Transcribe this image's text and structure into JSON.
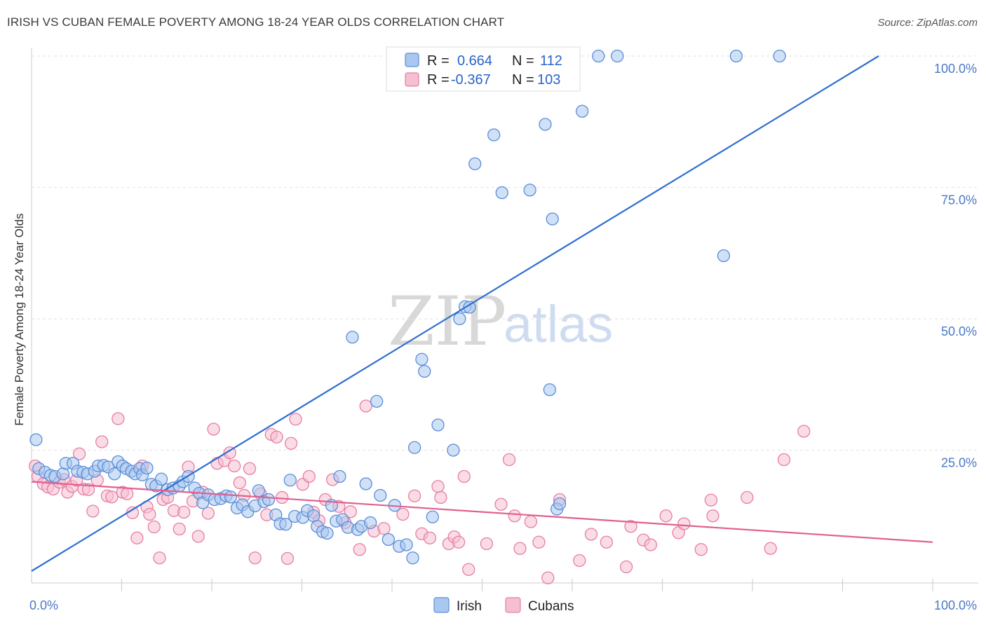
{
  "title": "IRISH VS CUBAN FEMALE POVERTY AMONG 18-24 YEAR OLDS CORRELATION CHART",
  "source": "Source: ZipAtlas.com",
  "watermark": {
    "zip": "ZIP",
    "atlas": "atlas"
  },
  "chart_data": {
    "type": "scatter",
    "title": "IRISH VS CUBAN FEMALE POVERTY AMONG 18-24 YEAR OLDS CORRELATION CHART",
    "xlabel": "",
    "ylabel": "Female Poverty Among 18-24 Year Olds",
    "xlim": [
      0,
      100
    ],
    "ylim": [
      0,
      100
    ],
    "x_tick_labels": [
      "0.0%",
      "100.0%"
    ],
    "y_ticks": [
      25,
      50,
      75,
      100
    ],
    "y_tick_labels": [
      "25.0%",
      "50.0%",
      "75.0%",
      "100.0%"
    ],
    "grid": true,
    "legend_placement": "top-center",
    "colors": {
      "irish": "#5b8fd8",
      "irish_fill": "#a9c7ef",
      "irish_line": "#2f6fcf",
      "cubans": "#e77fa3",
      "cubans_fill": "#f5bfd2",
      "cubans_line": "#e0608f"
    },
    "legend": {
      "irish": {
        "r_label": "R =",
        "r_value": "0.664",
        "n_label": "N =",
        "n_value": "112"
      },
      "cubans": {
        "r_label": "R =",
        "r_value": "-0.367",
        "n_label": "N =",
        "n_value": "103"
      }
    },
    "series": [
      {
        "name": "Irish",
        "trend": {
          "x": [
            0,
            94
          ],
          "y": [
            2,
            100
          ]
        },
        "points": [
          [
            0.5,
            27
          ],
          [
            0.8,
            21.5
          ],
          [
            1.5,
            20.8
          ],
          [
            2.1,
            20.2
          ],
          [
            2.6,
            20
          ],
          [
            3.5,
            20.5
          ],
          [
            3.8,
            22.5
          ],
          [
            4.6,
            22.5
          ],
          [
            5.1,
            21
          ],
          [
            5.7,
            20.8
          ],
          [
            6.2,
            20.5
          ],
          [
            7,
            21
          ],
          [
            7.4,
            22
          ],
          [
            8,
            22.1
          ],
          [
            8.5,
            21.8
          ],
          [
            9.2,
            20.5
          ],
          [
            9.6,
            22.8
          ],
          [
            10.1,
            22
          ],
          [
            10.5,
            21.5
          ],
          [
            11.1,
            21
          ],
          [
            11.5,
            20.5
          ],
          [
            12,
            21.5
          ],
          [
            12.3,
            20.3
          ],
          [
            12.8,
            21.6
          ],
          [
            13.3,
            18.5
          ],
          [
            13.8,
            18.2
          ],
          [
            14.4,
            19.5
          ],
          [
            15.1,
            17.5
          ],
          [
            15.7,
            17.8
          ],
          [
            16.4,
            18.2
          ],
          [
            16.8,
            19
          ],
          [
            17.4,
            20
          ],
          [
            18.1,
            17.8
          ],
          [
            18.6,
            16.8
          ],
          [
            19,
            15
          ],
          [
            19.6,
            16.5
          ],
          [
            20.3,
            15.6
          ],
          [
            21,
            15.8
          ],
          [
            21.6,
            16.3
          ],
          [
            22.1,
            16.1
          ],
          [
            22.8,
            14
          ],
          [
            23.4,
            14.6
          ],
          [
            24,
            13.3
          ],
          [
            24.8,
            14.4
          ],
          [
            25.2,
            17.3
          ],
          [
            25.8,
            15.2
          ],
          [
            26.3,
            15.6
          ],
          [
            27.1,
            12.7
          ],
          [
            27.6,
            11
          ],
          [
            28.2,
            10.9
          ],
          [
            28.7,
            19.3
          ],
          [
            29.2,
            12.4
          ],
          [
            30.1,
            12.2
          ],
          [
            30.6,
            13.5
          ],
          [
            31.3,
            12.5
          ],
          [
            31.7,
            10.5
          ],
          [
            32.3,
            9.5
          ],
          [
            32.8,
            9.2
          ],
          [
            33.3,
            14.5
          ],
          [
            33.8,
            11.5
          ],
          [
            34.2,
            20
          ],
          [
            34.5,
            11.8
          ],
          [
            35.1,
            10.3
          ],
          [
            35.6,
            46.5
          ],
          [
            36.2,
            9.9
          ],
          [
            36.6,
            10.5
          ],
          [
            37.1,
            18.6
          ],
          [
            37.6,
            11.2
          ],
          [
            38.3,
            34.3
          ],
          [
            38.7,
            16.4
          ],
          [
            39.6,
            8
          ],
          [
            40.3,
            14.5
          ],
          [
            40.8,
            6.7
          ],
          [
            41.6,
            7
          ],
          [
            42.3,
            4.5
          ],
          [
            42.5,
            25.5
          ],
          [
            43.3,
            42.3
          ],
          [
            43.6,
            40
          ],
          [
            44.5,
            12.3
          ],
          [
            45.1,
            29.8
          ],
          [
            46.8,
            25
          ],
          [
            47.5,
            50
          ],
          [
            48.1,
            52.3
          ],
          [
            48.6,
            52.2
          ],
          [
            49.2,
            79.5
          ],
          [
            51.3,
            85
          ],
          [
            52.2,
            74
          ],
          [
            53.3,
            100
          ],
          [
            54,
            100
          ],
          [
            55.3,
            74.5
          ],
          [
            57,
            87
          ],
          [
            57.5,
            36.5
          ],
          [
            57.8,
            69
          ],
          [
            58.3,
            13.8
          ],
          [
            58.6,
            14.8
          ],
          [
            60,
            100
          ],
          [
            61.1,
            89.5
          ],
          [
            62.9,
            100
          ],
          [
            65,
            100
          ],
          [
            76.8,
            62
          ],
          [
            78.2,
            100
          ],
          [
            83,
            100
          ]
        ]
      },
      {
        "name": "Cubans",
        "trend": {
          "x": [
            0,
            100
          ],
          "y": [
            19,
            7.5
          ]
        },
        "points": [
          [
            0.4,
            22
          ],
          [
            0.7,
            20
          ],
          [
            1.3,
            18.6
          ],
          [
            1.8,
            18
          ],
          [
            2.4,
            17.6
          ],
          [
            3.1,
            18.9
          ],
          [
            3.6,
            19.4
          ],
          [
            4,
            17
          ],
          [
            4.5,
            18.1
          ],
          [
            5,
            19.3
          ],
          [
            5.3,
            24.3
          ],
          [
            5.8,
            17.6
          ],
          [
            6.3,
            17.5
          ],
          [
            6.8,
            13.4
          ],
          [
            7.3,
            19.3
          ],
          [
            7.8,
            26.6
          ],
          [
            8.4,
            16.3
          ],
          [
            8.9,
            16.1
          ],
          [
            9.6,
            31
          ],
          [
            10.1,
            17
          ],
          [
            10.6,
            16.7
          ],
          [
            11.2,
            13.1
          ],
          [
            11.7,
            8.3
          ],
          [
            12.3,
            22
          ],
          [
            12.8,
            14.2
          ],
          [
            13.1,
            12.8
          ],
          [
            13.6,
            10.4
          ],
          [
            14.2,
            4.5
          ],
          [
            14.6,
            15.6
          ],
          [
            15.1,
            16
          ],
          [
            15.8,
            13.5
          ],
          [
            16.4,
            10
          ],
          [
            16.9,
            13.2
          ],
          [
            17.4,
            21.8
          ],
          [
            17.9,
            15.3
          ],
          [
            18.5,
            8.6
          ],
          [
            19,
            17
          ],
          [
            19.6,
            13
          ],
          [
            20.2,
            29
          ],
          [
            20.6,
            22.5
          ],
          [
            21.4,
            23
          ],
          [
            22,
            24.5
          ],
          [
            22.5,
            22
          ],
          [
            23.1,
            18.8
          ],
          [
            23.6,
            16.4
          ],
          [
            24.2,
            21.5
          ],
          [
            24.8,
            4.5
          ],
          [
            25.4,
            16.7
          ],
          [
            26.1,
            12.7
          ],
          [
            26.6,
            28
          ],
          [
            27.2,
            27.5
          ],
          [
            27.8,
            16
          ],
          [
            28.4,
            4.4
          ],
          [
            28.8,
            26.3
          ],
          [
            29.3,
            30.9
          ],
          [
            30.1,
            18.5
          ],
          [
            30.8,
            20
          ],
          [
            31.3,
            13.2
          ],
          [
            31.9,
            11.6
          ],
          [
            32.6,
            15.6
          ],
          [
            33.4,
            19.4
          ],
          [
            34.1,
            14.3
          ],
          [
            34.8,
            11.2
          ],
          [
            35.4,
            13.3
          ],
          [
            36.4,
            6.1
          ],
          [
            37.1,
            33.4
          ],
          [
            38,
            9.6
          ],
          [
            39.1,
            10.1
          ],
          [
            41.2,
            12.8
          ],
          [
            42.5,
            16.3
          ],
          [
            43.3,
            9.1
          ],
          [
            44.2,
            8.3
          ],
          [
            45.1,
            18.1
          ],
          [
            45.4,
            16
          ],
          [
            46.3,
            7.2
          ],
          [
            46.9,
            8.5
          ],
          [
            47.4,
            7.5
          ],
          [
            48,
            20
          ],
          [
            48.5,
            2.3
          ],
          [
            50.5,
            7.2
          ],
          [
            52.1,
            14.7
          ],
          [
            53,
            23.2
          ],
          [
            53.6,
            12.5
          ],
          [
            54.2,
            6.3
          ],
          [
            55.4,
            11.4
          ],
          [
            56.3,
            7.5
          ],
          [
            57.3,
            0.7
          ],
          [
            58.6,
            15.6
          ],
          [
            60.8,
            4
          ],
          [
            62.1,
            9
          ],
          [
            63.8,
            7.5
          ],
          [
            66,
            2.8
          ],
          [
            66.5,
            10.5
          ],
          [
            67.9,
            7.9
          ],
          [
            68.7,
            7
          ],
          [
            70.4,
            12.5
          ],
          [
            71.8,
            9.3
          ],
          [
            72.4,
            11
          ],
          [
            74.3,
            6.1
          ],
          [
            75.4,
            15.5
          ],
          [
            75.6,
            12.5
          ],
          [
            79.4,
            16
          ],
          [
            82,
            6.3
          ],
          [
            83.5,
            23.2
          ],
          [
            85.7,
            28.6
          ]
        ]
      }
    ]
  },
  "bottom_legend": {
    "irish": "Irish",
    "cubans": "Cubans"
  }
}
